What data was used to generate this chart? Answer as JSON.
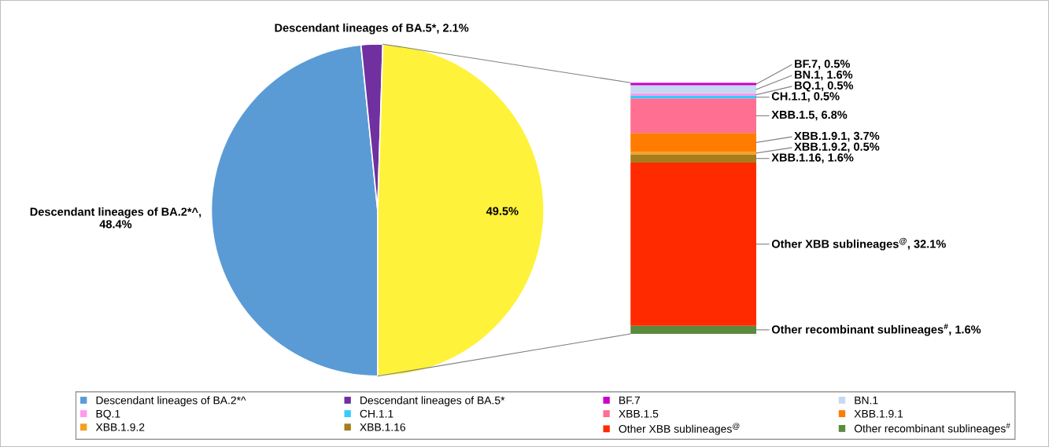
{
  "chart_data": [
    {
      "type": "pie",
      "categories": [
        "Descendant lineages of BA.2*^",
        "Descendant lineages of BA.5*",
        null
      ],
      "values": [
        48.4,
        2.1,
        49.5
      ],
      "colors": [
        "#5b9bd5",
        "#7030a0",
        "#fff23a"
      ],
      "value_labels": [
        "Descendant lineages of BA.2*^, 48.4%",
        "Descendant lineages of BA.5*, 2.1%",
        "49.5%"
      ],
      "legend": "bottom"
    },
    {
      "type": "bar",
      "stacked": true,
      "categories": [
        null
      ],
      "legend": "bottom",
      "series": [
        {
          "name": "Other recombinant sublineages$^{#}$",
          "color": "#5a8a3c",
          "values": [
            1.6
          ],
          "value_labels": [
            "Other recombinant sublineages$^{#}$, 1.6%"
          ]
        },
        {
          "name": "Other XBB sublineages$^{@}$",
          "color": "#ff2a00",
          "values": [
            32.1
          ],
          "value_labels": [
            "Other XBB sublineages$^{@}$, 32.1%"
          ]
        },
        {
          "name": "XBB.1.16",
          "color": "#a67c1c",
          "values": [
            1.6
          ],
          "value_labels": [
            "XBB.1.16, 1.6%"
          ]
        },
        {
          "name": "XBB.1.9.2",
          "color": "#f4a020",
          "values": [
            0.5
          ],
          "value_labels": [
            "XBB.1.9.2, 0.5%"
          ]
        },
        {
          "name": "XBB.1.9.1",
          "color": "#ff7c00",
          "values": [
            3.7
          ],
          "value_labels": [
            "XBB.1.9.1, 3.7%"
          ]
        },
        {
          "name": "XBB.1.5",
          "color": "#ff6f91",
          "values": [
            6.8
          ],
          "value_labels": [
            "XBB.1.5, 6.8%"
          ]
        },
        {
          "name": "CH.1.1",
          "color": "#33ccff",
          "values": [
            0.5
          ],
          "value_labels": [
            "CH.1.1, 0.5%"
          ]
        },
        {
          "name": "BQ.1",
          "color": "#ff99ee",
          "values": [
            0.5
          ],
          "value_labels": [
            "BQ.1, 0.5%"
          ]
        },
        {
          "name": "BN.1",
          "color": "#c5d9f1",
          "values": [
            1.6
          ],
          "value_labels": [
            "BN.1, 1.6%"
          ]
        },
        {
          "name": "BF.7",
          "color": "#cc00cc",
          "values": [
            0.5
          ],
          "value_labels": [
            "BF.7, 0.5%"
          ]
        }
      ]
    }
  ]
}
